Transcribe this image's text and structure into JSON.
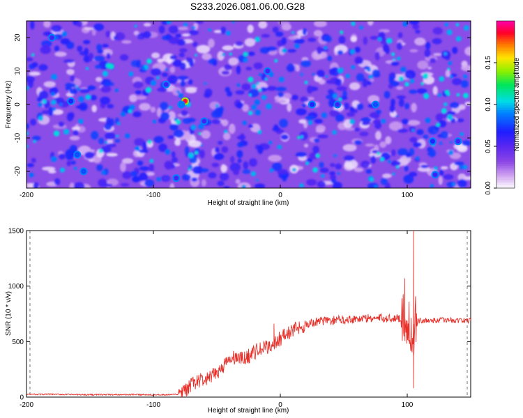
{
  "title": "S233.2026.081.06.00.G28",
  "chart_data": [
    {
      "type": "heatmap",
      "title": "S233.2026.081.06.00.G28",
      "xlabel": "Height of straight line (km)",
      "ylabel": "Frequency (Hz)",
      "xlim": [
        -200,
        150
      ],
      "ylim": [
        -25,
        25
      ],
      "xticks": [
        -200,
        -100,
        0,
        100
      ],
      "xtick_labels": [
        "-200",
        "-100",
        "0",
        "100"
      ],
      "yticks": [
        -20,
        -10,
        0,
        10,
        20
      ],
      "ytick_labels": [
        "-20",
        "-10",
        "0",
        "10",
        "20"
      ],
      "colorbar": {
        "label": "Normalized spectral amplitude",
        "range": [
          0,
          0.2
        ],
        "ticks": [
          0,
          0.05,
          0.1,
          0.15
        ],
        "tick_labels": [
          "0.00",
          "0.05",
          "0.10",
          "0.15"
        ],
        "colormap": "rainbow (white-purple-blue-cyan-green-yellow-red-magenta)"
      },
      "typical_level": 0.02,
      "peaks": [
        {
          "x": -75,
          "y": 1,
          "value": 0.19
        },
        {
          "x": -78,
          "y": 0,
          "value": 0.09
        },
        {
          "x": -160,
          "y": -15,
          "value": 0.08
        },
        {
          "x": -155,
          "y": -20,
          "value": 0.08
        },
        {
          "x": -165,
          "y": 1,
          "value": 0.07
        },
        {
          "x": -82,
          "y": -22,
          "value": 0.06
        },
        {
          "x": 75,
          "y": 0,
          "value": 0.08
        },
        {
          "x": 120,
          "y": -11,
          "value": 0.07
        },
        {
          "x": 122,
          "y": -21,
          "value": 0.06
        },
        {
          "x": 140,
          "y": -11,
          "value": 0.06
        },
        {
          "x": 25,
          "y": 0,
          "value": 0.07
        },
        {
          "x": -60,
          "y": -5,
          "value": 0.06
        },
        {
          "x": -90,
          "y": 6,
          "value": 0.06
        },
        {
          "x": -10,
          "y": 10,
          "value": 0.06
        },
        {
          "x": 45,
          "y": 0,
          "value": 0.06
        },
        {
          "x": -180,
          "y": 20,
          "value": 0.06
        }
      ]
    },
    {
      "type": "line",
      "xlabel": "Height of straight line (km)",
      "ylabel": "SNR (10 * v/v)",
      "xlim": [
        -200,
        150
      ],
      "ylim": [
        0,
        1500
      ],
      "xticks": [
        -200,
        -100,
        0,
        100
      ],
      "xtick_labels": [
        "-200",
        "-100",
        "0",
        "100"
      ],
      "yticks": [
        0,
        500,
        1000,
        1500
      ],
      "ytick_labels": [
        "0",
        "500",
        "1000",
        "1500"
      ],
      "color": "#e8302a",
      "series": [
        {
          "name": "SNR",
          "x": [
            -200,
            -180,
            -160,
            -140,
            -120,
            -100,
            -90,
            -80,
            -75,
            -70,
            -65,
            -60,
            -55,
            -50,
            -45,
            -40,
            -35,
            -30,
            -25,
            -20,
            -15,
            -10,
            -5,
            0,
            5,
            10,
            15,
            20,
            25,
            30,
            35,
            40,
            50,
            60,
            70,
            80,
            90,
            95,
            100,
            102,
            104,
            105,
            106,
            108,
            110,
            120,
            130,
            140,
            150
          ],
          "values": [
            25,
            25,
            22,
            22,
            22,
            22,
            20,
            25,
            50,
            110,
            150,
            150,
            170,
            220,
            280,
            330,
            360,
            340,
            370,
            410,
            430,
            450,
            480,
            530,
            570,
            600,
            630,
            650,
            670,
            680,
            690,
            690,
            700,
            705,
            710,
            710,
            710,
            715,
            700,
            660,
            520,
            380,
            650,
            680,
            690,
            690,
            695,
            690,
            690
          ]
        }
      ],
      "annotations": [
        {
          "x": 105,
          "value": 1500,
          "note": "maximum spike"
        },
        {
          "x": 98,
          "value": 1070,
          "note": "spike"
        },
        {
          "x": -5,
          "value": 660,
          "note": "spike"
        },
        {
          "x": 105,
          "value": 80,
          "note": "dip"
        }
      ]
    }
  ]
}
